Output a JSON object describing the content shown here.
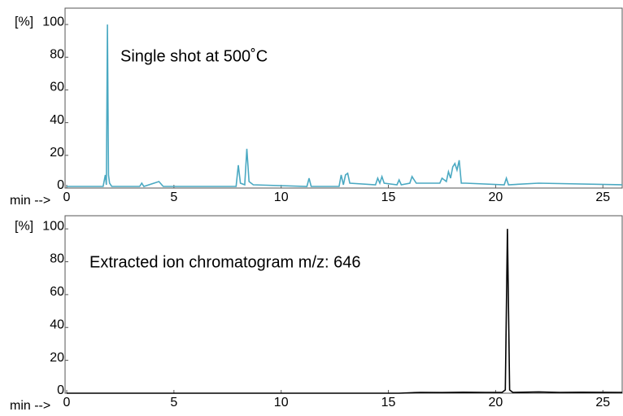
{
  "chart_data": [
    {
      "type": "line",
      "annotation": "Single shot at 500˚C",
      "y_label": "[%]",
      "x_label": "min -->",
      "xlim": [
        0,
        25.9
      ],
      "ylim": [
        0,
        110
      ],
      "xticks": [
        0,
        5,
        10,
        15,
        20,
        25
      ],
      "yticks": [
        0,
        20,
        40,
        60,
        80,
        100
      ],
      "color": "#4aa9c2",
      "x": [
        0,
        1.7,
        1.8,
        1.85,
        1.9,
        1.95,
        2.0,
        2.1,
        3.4,
        3.5,
        3.6,
        4.3,
        4.5,
        7.9,
        8.0,
        8.1,
        8.3,
        8.4,
        8.5,
        8.7,
        11.2,
        11.3,
        11.4,
        12.7,
        12.8,
        12.9,
        13.0,
        13.1,
        13.2,
        14.4,
        14.5,
        14.6,
        14.7,
        14.8,
        15.4,
        15.5,
        15.6,
        16.0,
        16.1,
        16.3,
        17.4,
        17.5,
        17.7,
        17.8,
        17.9,
        18.0,
        18.1,
        18.2,
        18.3,
        18.4,
        18.6,
        20.4,
        20.5,
        20.6,
        22.0,
        25.9
      ],
      "values": [
        1,
        1,
        8,
        2,
        100,
        8,
        3,
        1,
        1,
        3,
        1,
        4,
        1,
        1,
        14,
        3,
        2,
        24,
        4,
        2,
        1,
        6,
        1,
        1,
        8,
        2,
        8,
        9,
        3,
        2,
        6,
        3,
        7,
        3,
        2,
        5,
        2,
        3,
        7,
        3,
        3,
        6,
        4,
        10,
        6,
        13,
        15,
        11,
        17,
        3,
        3,
        2,
        6,
        2,
        3,
        2
      ]
    },
    {
      "type": "line",
      "annotation": "Extracted ion chromatogram m/z: 646",
      "y_label": "[%]",
      "x_label": "min -->",
      "xlim": [
        0,
        25.9
      ],
      "ylim": [
        0,
        108
      ],
      "xticks": [
        0,
        5,
        10,
        15,
        20,
        25
      ],
      "yticks": [
        0,
        20,
        40,
        60,
        80,
        100
      ],
      "color": "#000000",
      "x": [
        0,
        15.5,
        16.5,
        17.5,
        18.5,
        19.5,
        20.3,
        20.45,
        20.55,
        20.65,
        20.8,
        22.0,
        23.0,
        24.0,
        25.9
      ],
      "values": [
        0,
        0,
        0.5,
        0.4,
        0.6,
        0.5,
        0.5,
        2,
        100,
        2,
        0.5,
        0.8,
        0.5,
        0.6,
        0.5
      ]
    }
  ]
}
